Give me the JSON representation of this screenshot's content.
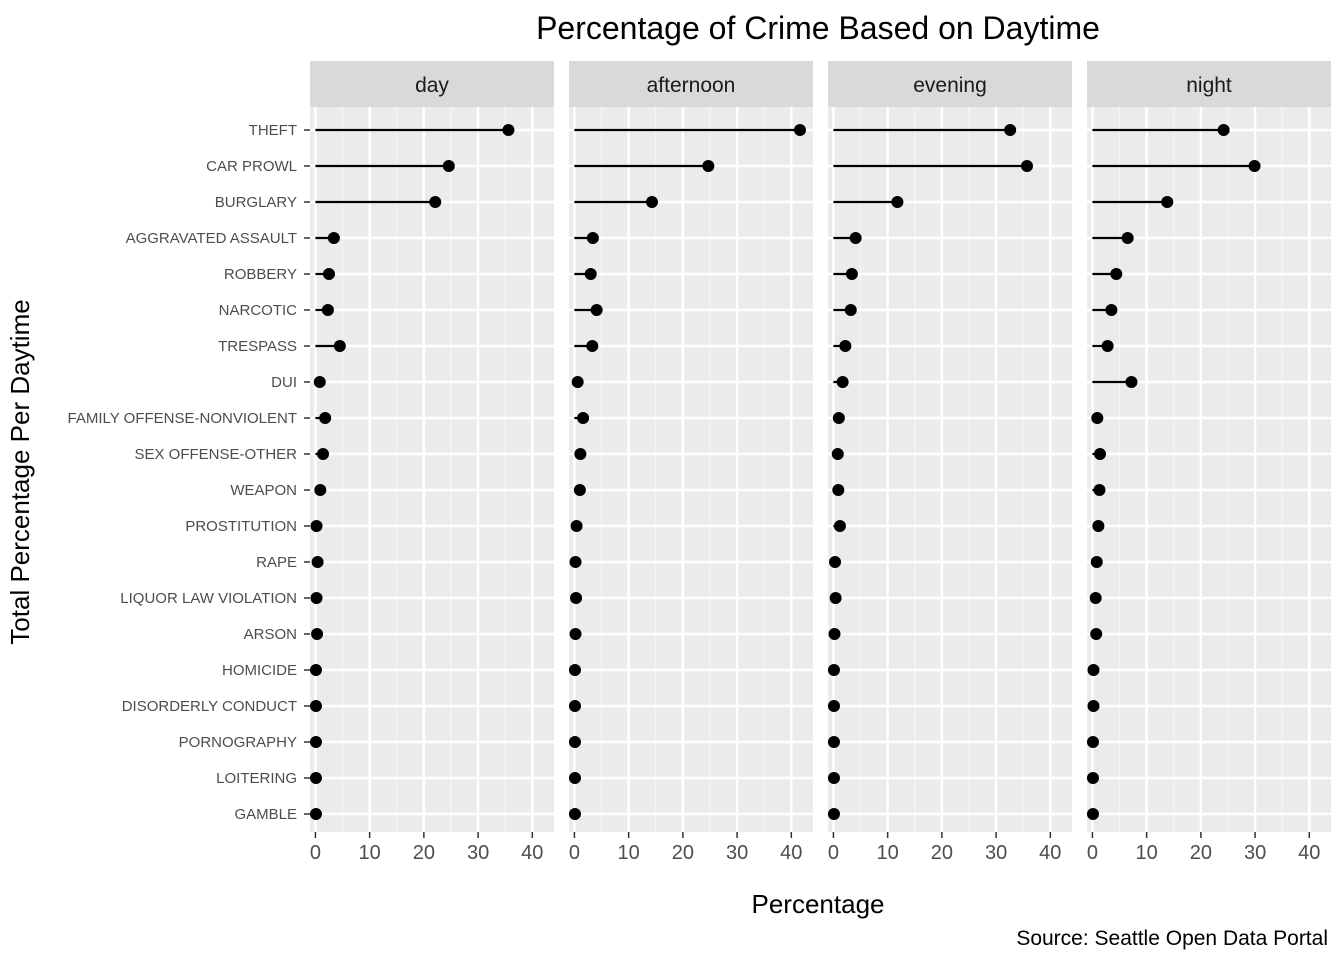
{
  "chart_data": {
    "type": "lollipop",
    "title": "Percentage of Crime Based on Daytime",
    "xlabel": "Percentage",
    "ylabel": "Total Percentage Per Daytime",
    "caption": "Source: Seattle Open Data Portal",
    "xlim": [
      -1,
      44
    ],
    "x_ticks": [
      0,
      10,
      20,
      30,
      40
    ],
    "grid": true,
    "categories": [
      "THEFT",
      "CAR PROWL",
      "BURGLARY",
      "AGGRAVATED ASSAULT",
      "ROBBERY",
      "NARCOTIC",
      "TRESPASS",
      "DUI",
      "FAMILY OFFENSE-NONVIOLENT",
      "SEX OFFENSE-OTHER",
      "WEAPON",
      "PROSTITUTION",
      "RAPE",
      "LIQUOR LAW VIOLATION",
      "ARSON",
      "HOMICIDE",
      "DISORDERLY CONDUCT",
      "PORNOGRAPHY",
      "LOITERING",
      "GAMBLE"
    ],
    "panels": [
      {
        "name": "day",
        "values": [
          35.6,
          24.6,
          22.1,
          3.4,
          2.5,
          2.3,
          4.5,
          0.8,
          1.8,
          1.4,
          0.9,
          0.2,
          0.4,
          0.2,
          0.3,
          0.1,
          0.1,
          0.1,
          0.1,
          0.1
        ]
      },
      {
        "name": "afternoon",
        "values": [
          41.6,
          24.7,
          14.3,
          3.4,
          3.0,
          4.1,
          3.3,
          0.6,
          1.6,
          1.1,
          1.0,
          0.4,
          0.2,
          0.3,
          0.2,
          0.1,
          0.1,
          0.1,
          0.1,
          0.1
        ]
      },
      {
        "name": "evening",
        "values": [
          32.6,
          35.7,
          11.8,
          4.1,
          3.4,
          3.2,
          2.2,
          1.7,
          1.0,
          0.8,
          0.9,
          1.2,
          0.3,
          0.4,
          0.2,
          0.1,
          0.1,
          0.1,
          0.1,
          0.1
        ]
      },
      {
        "name": "night",
        "values": [
          24.2,
          29.9,
          13.8,
          6.5,
          4.4,
          3.5,
          2.8,
          7.2,
          0.9,
          1.4,
          1.3,
          1.1,
          0.8,
          0.6,
          0.7,
          0.2,
          0.2,
          0.1,
          0.1,
          0.1
        ]
      }
    ]
  }
}
